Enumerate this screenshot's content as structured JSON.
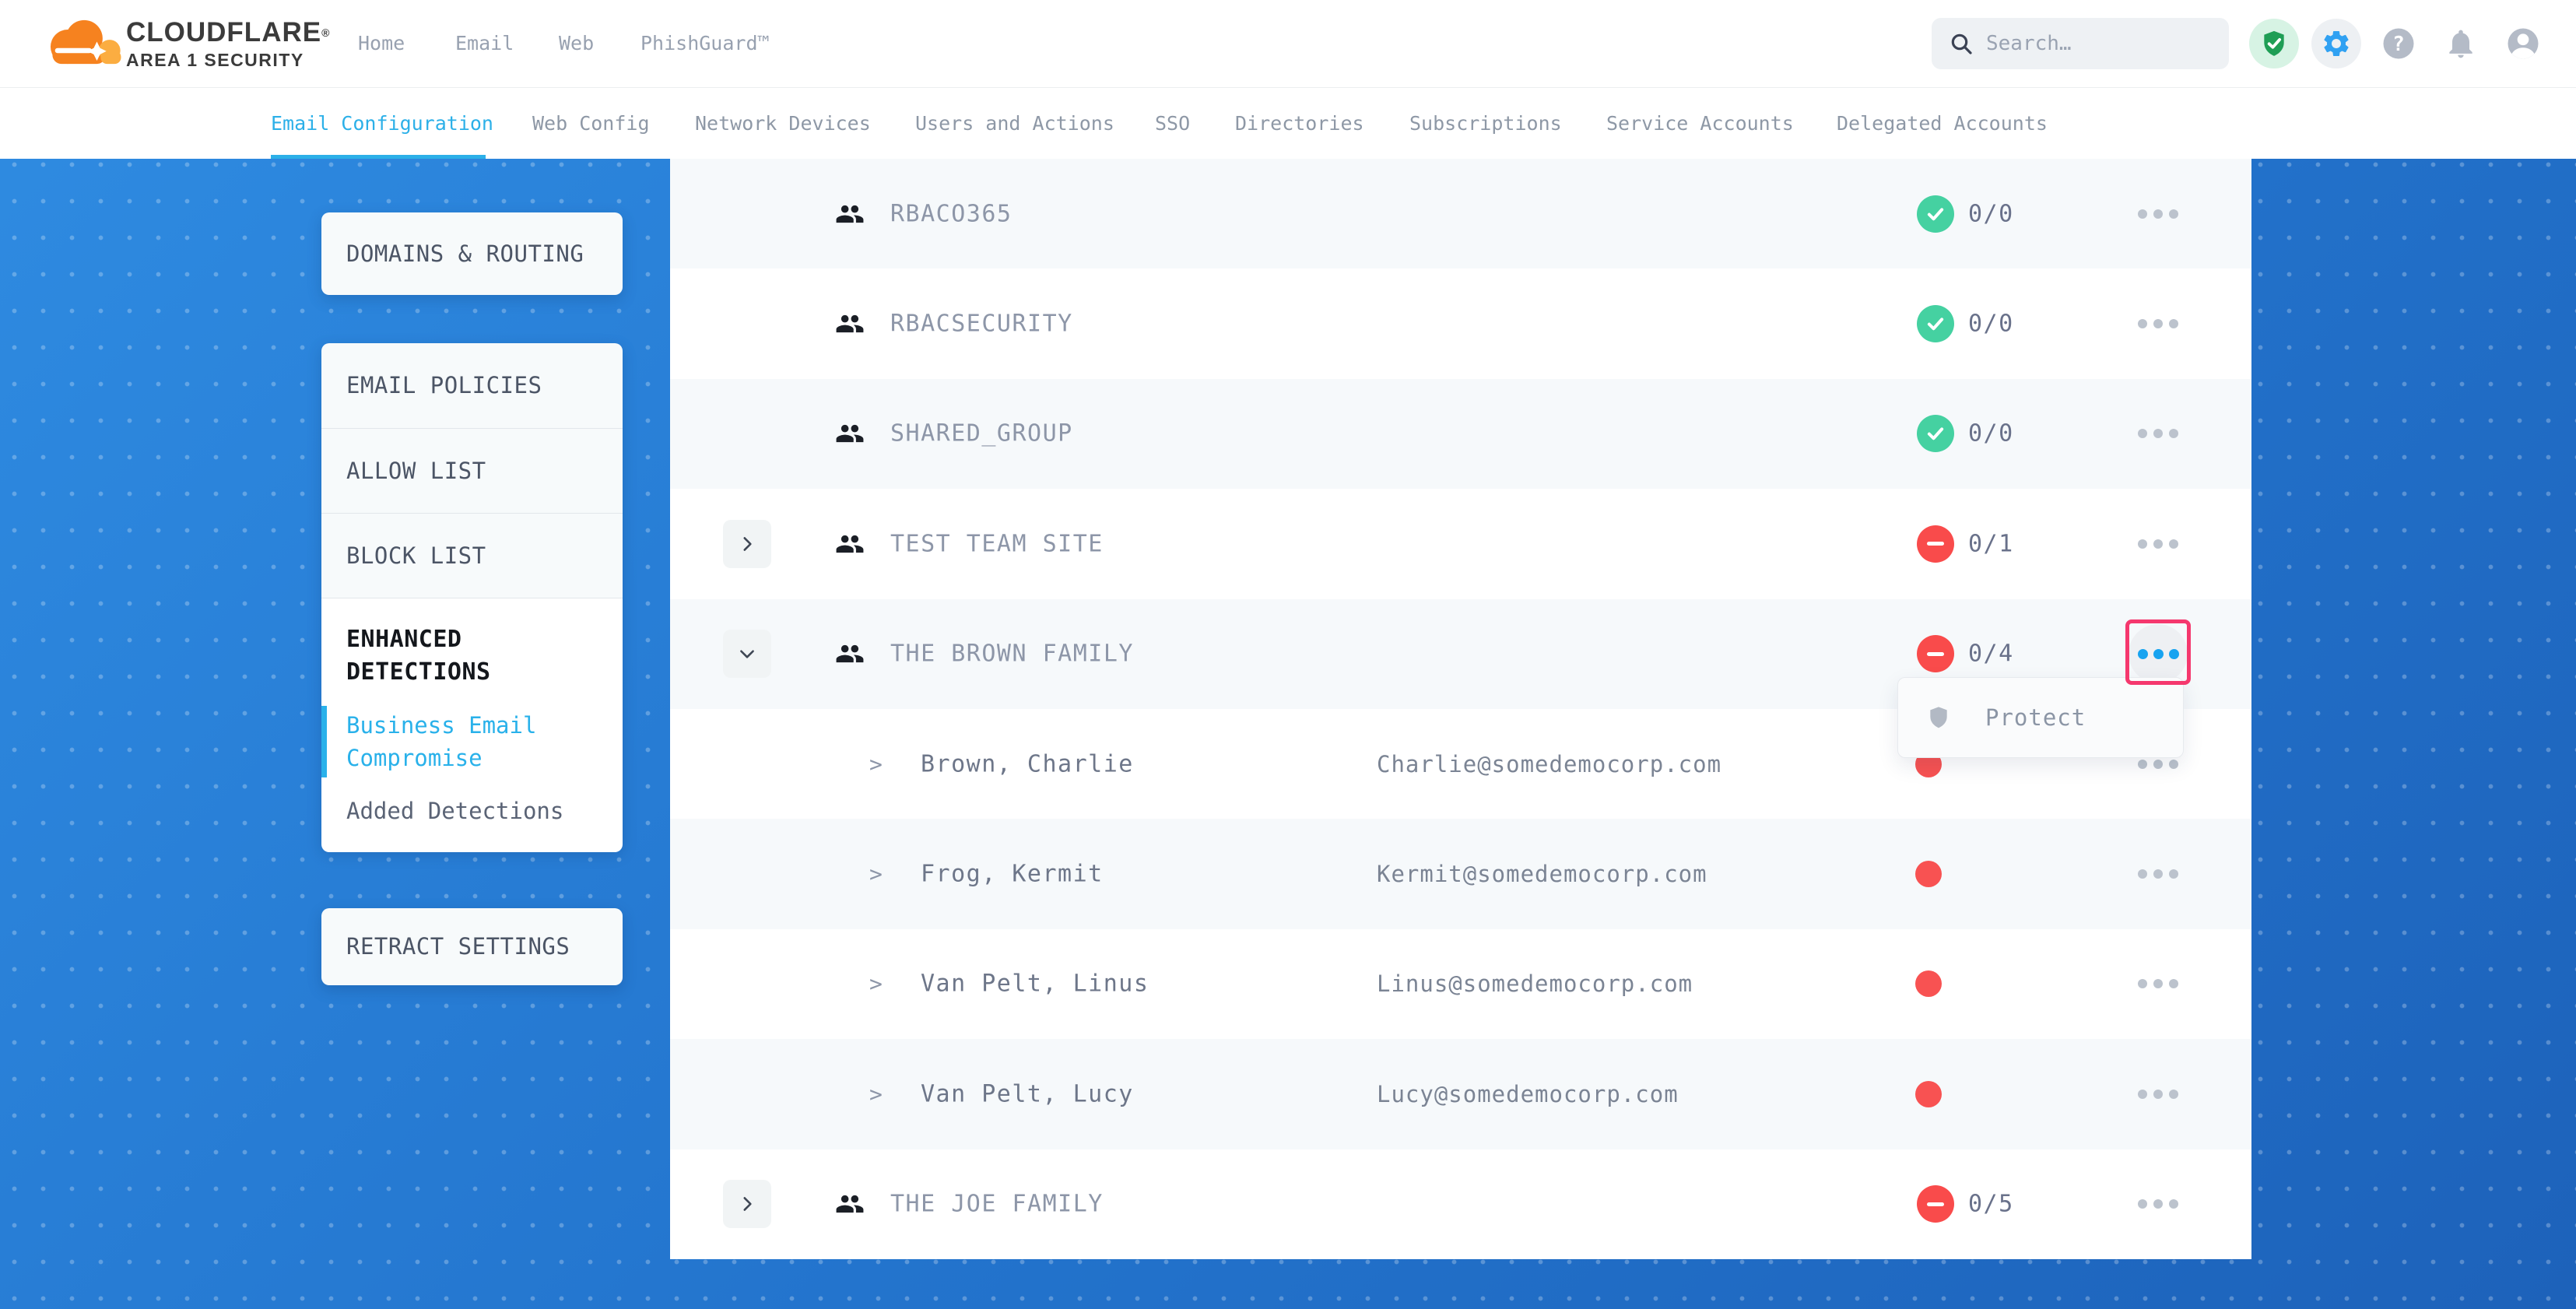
{
  "brand": {
    "name": "CLOUDFLARE",
    "registered": "®",
    "tagline": "AREA 1 SECURITY"
  },
  "header": {
    "nav": [
      {
        "label": "Home"
      },
      {
        "label": "Email"
      },
      {
        "label": "Web"
      },
      {
        "label": "PhishGuard™"
      }
    ],
    "search": {
      "placeholder": "Search…"
    },
    "icons": [
      "shield-check",
      "settings-gear",
      "help",
      "notifications-bell",
      "account"
    ]
  },
  "tabs": [
    {
      "label": "Email Configuration",
      "active": true
    },
    {
      "label": "Web Config",
      "active": false
    },
    {
      "label": "Network Devices",
      "active": false
    },
    {
      "label": "Users and Actions",
      "active": false
    },
    {
      "label": "SSO",
      "active": false
    },
    {
      "label": "Directories",
      "active": false
    },
    {
      "label": "Subscriptions",
      "active": false
    },
    {
      "label": "Service Accounts",
      "active": false
    },
    {
      "label": "Delegated Accounts",
      "active": false
    }
  ],
  "sidebar": {
    "domains_routing": {
      "label": "DOMAINS & ROUTING"
    },
    "policy_group": {
      "items": [
        {
          "label": "EMAIL POLICIES"
        },
        {
          "label": "ALLOW LIST"
        },
        {
          "label": "BLOCK LIST"
        }
      ]
    },
    "enhanced": {
      "title": "ENHANCED DETECTIONS",
      "items": [
        {
          "label": "Business Email Compromise",
          "active": true
        },
        {
          "label": "Added Detections",
          "active": false
        }
      ]
    },
    "retract": {
      "label": "RETRACT SETTINGS"
    }
  },
  "table": {
    "rows": [
      {
        "type": "group",
        "name": "RBACO365",
        "status": "protected",
        "count": "0/0"
      },
      {
        "type": "group",
        "name": "RBACSECURITY",
        "status": "protected",
        "count": "0/0"
      },
      {
        "type": "group",
        "name": "SHARED_GROUP",
        "status": "protected",
        "count": "0/0"
      },
      {
        "type": "group",
        "name": "TEST TEAM SITE",
        "status": "unprotected",
        "count": "0/1",
        "expander": "collapsed"
      },
      {
        "type": "group",
        "name": "THE BROWN FAMILY",
        "status": "unprotected",
        "count": "0/4",
        "expander": "expanded",
        "menu_open": true
      },
      {
        "type": "member",
        "name": "Brown, Charlie",
        "email": "Charlie@somedemocorp.com",
        "status": "unprotected"
      },
      {
        "type": "member",
        "name": "Frog, Kermit",
        "email": "Kermit@somedemocorp.com",
        "status": "unprotected"
      },
      {
        "type": "member",
        "name": "Van Pelt, Linus",
        "email": "Linus@somedemocorp.com",
        "status": "unprotected"
      },
      {
        "type": "member",
        "name": "Van Pelt, Lucy",
        "email": "Lucy@somedemocorp.com",
        "status": "unprotected"
      },
      {
        "type": "group",
        "name": "THE JOE FAMILY",
        "status": "unprotected",
        "count": "0/5",
        "expander": "collapsed"
      }
    ]
  },
  "context_menu": {
    "items": [
      {
        "icon": "shield",
        "label": "Protect"
      }
    ]
  },
  "colors": {
    "accent_cyan": "#2cb0e8",
    "brand_orange": "#f6821f",
    "brand_orange_light": "#fbad41",
    "success_green": "#45d1a1",
    "danger_red": "#f94b4b",
    "highlight_pink": "#f5386e",
    "page_blue": "#2374cd"
  }
}
